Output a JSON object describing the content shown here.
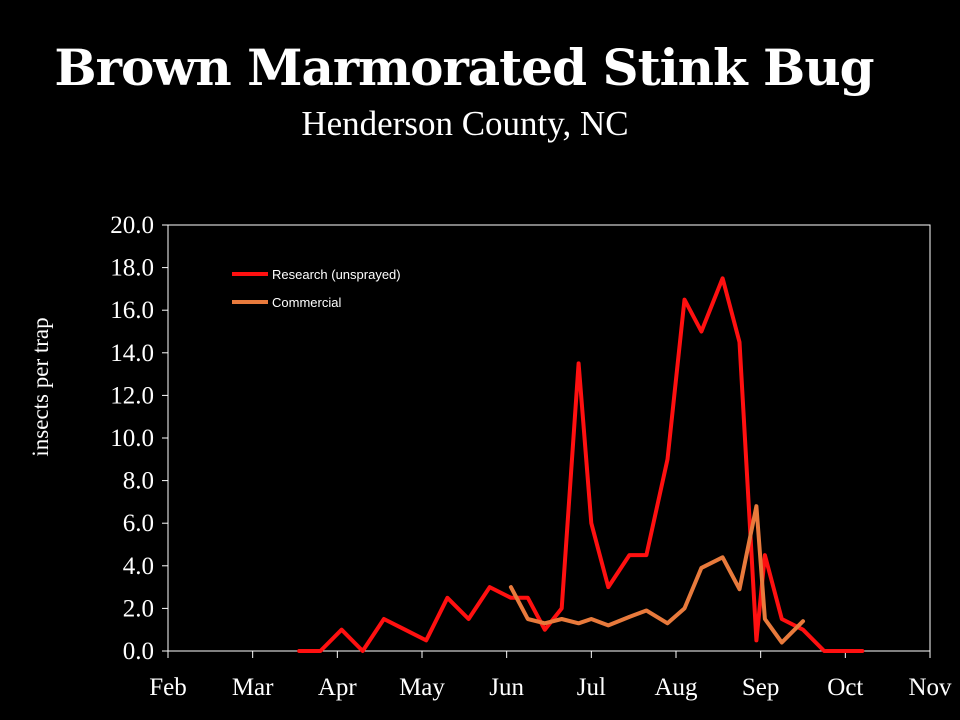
{
  "chart_data": {
    "type": "line",
    "title": "Brown Marmorated Stink Bug",
    "subtitle": "Henderson County, NC",
    "xlabel": "",
    "ylabel": "insects per trap",
    "ylim": [
      0,
      20
    ],
    "y_ticks": [
      "0.0",
      "2.0",
      "4.0",
      "6.0",
      "8.0",
      "10.0",
      "12.0",
      "14.0",
      "16.0",
      "18.0",
      "20.0"
    ],
    "x_ticks": [
      "Feb",
      "Mar",
      "Apr",
      "May",
      "Jun",
      "Jul",
      "Aug",
      "Sep",
      "Oct",
      "Nov"
    ],
    "x_unit": "month (Feb = 0, Nov = 9)",
    "grid": false,
    "legend_position": "upper-left inside plot",
    "series": [
      {
        "name": "Research (unsprayed)",
        "color": "#ff1010",
        "x": [
          1.55,
          1.8,
          2.05,
          2.3,
          2.55,
          2.8,
          3.05,
          3.3,
          3.55,
          3.8,
          4.05,
          4.25,
          4.45,
          4.65,
          4.85,
          5.0,
          5.2,
          5.45,
          5.65,
          5.9,
          6.1,
          6.3,
          6.55,
          6.75,
          6.95,
          7.05,
          7.25,
          7.5,
          7.75,
          8.0,
          8.2
        ],
        "values": [
          0.0,
          0.0,
          1.0,
          0.0,
          1.5,
          1.0,
          0.5,
          2.5,
          1.5,
          3.0,
          2.5,
          2.5,
          1.0,
          2.0,
          13.5,
          6.0,
          3.0,
          4.5,
          4.5,
          9.0,
          16.5,
          15.0,
          17.5,
          14.5,
          0.5,
          4.5,
          1.5,
          1.0,
          0.0,
          0.0,
          0.0
        ]
      },
      {
        "name": "Commercial",
        "color": "#e87a3c",
        "x": [
          4.05,
          4.25,
          4.45,
          4.65,
          4.85,
          5.0,
          5.2,
          5.45,
          5.65,
          5.9,
          6.1,
          6.3,
          6.55,
          6.75,
          6.95,
          7.05,
          7.25,
          7.5
        ],
        "values": [
          3.0,
          1.5,
          1.3,
          1.5,
          1.3,
          1.5,
          1.2,
          1.6,
          1.9,
          1.3,
          2.0,
          3.9,
          4.4,
          2.9,
          6.8,
          1.5,
          0.4,
          1.4
        ]
      }
    ]
  }
}
